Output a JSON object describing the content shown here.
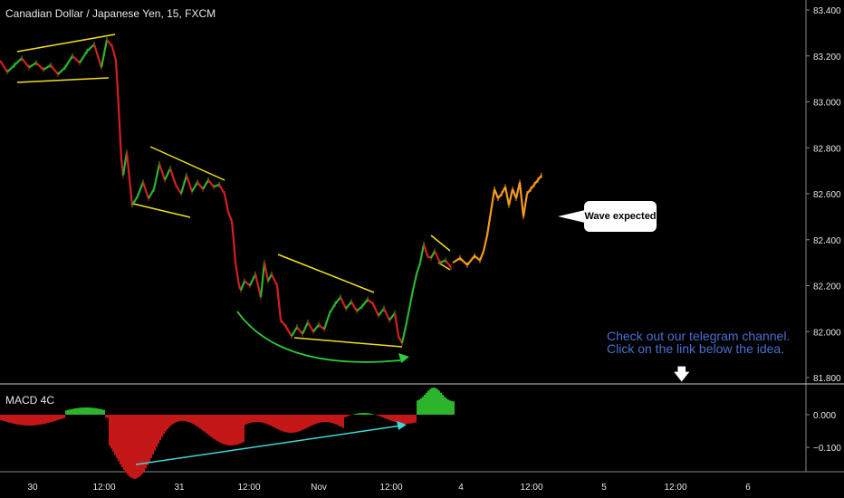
{
  "chart": {
    "title": "Canadian Dollar / Japanese Yen, 15, FXCM",
    "callout_text": "Wave expected",
    "telegram_line1": "Check out our telegram channel.",
    "telegram_line2": "Click on the link below the idea.",
    "macd_label": "MACD 4C",
    "down_arrow_icon": "arrow-down-icon"
  },
  "colors": {
    "background": "#000000",
    "candle_up": "#2db42d",
    "candle_down": "#d42020",
    "projection": "#f59a1f",
    "trendline": "#f2e01d",
    "arc": "#2fcc3c",
    "divergence": "#3fd6d6",
    "macd_pos": "#2db42d",
    "macd_neg": "#c41818",
    "link": "#4a6fd1"
  },
  "chart_data": {
    "type": "line",
    "price_axis_ticks": [
      "83.400",
      "83.200",
      "83.000",
      "82.800",
      "82.600",
      "82.400",
      "82.200",
      "82.000",
      "81.800"
    ],
    "price_ylim": [
      81.78,
      83.42
    ],
    "macd_axis_ticks": [
      "0.000",
      "−0.100"
    ],
    "time_axis_ticks": [
      "30",
      "12:00",
      "31",
      "12:00",
      "Nov",
      "12:00",
      "4",
      "12:00",
      "5",
      "12:00",
      "6"
    ],
    "series": [
      {
        "x": [
          0,
          8,
          16,
          24,
          32,
          40,
          48,
          56,
          64,
          72,
          80,
          88,
          96,
          104,
          112,
          118,
          124,
          128,
          130,
          132,
          134,
          136,
          140,
          146,
          152,
          158,
          164,
          170,
          176,
          182,
          188,
          194,
          200,
          206,
          212,
          218,
          224,
          230,
          236,
          242,
          248,
          252,
          256,
          258,
          260,
          262,
          264,
          266,
          270,
          276,
          282,
          288,
          292,
          296,
          300,
          306,
          310,
          316,
          322,
          328,
          334,
          340,
          346,
          352,
          358,
          364,
          370,
          376,
          382,
          388,
          394,
          400,
          406,
          412,
          418,
          424,
          430,
          436,
          440,
          444,
          448,
          452,
          456,
          460,
          464,
          468,
          472,
          476,
          480,
          486,
          492,
          498
        ],
        "values": [
          83.18,
          83.13,
          83.16,
          83.19,
          83.15,
          83.17,
          83.14,
          83.16,
          83.12,
          83.15,
          83.2,
          83.17,
          83.22,
          83.25,
          83.15,
          83.27,
          83.24,
          83.18,
          83.05,
          82.9,
          82.75,
          82.68,
          82.78,
          82.55,
          82.59,
          82.65,
          82.58,
          82.62,
          82.73,
          82.66,
          82.71,
          82.64,
          82.6,
          82.68,
          82.61,
          82.65,
          82.62,
          82.66,
          82.63,
          82.64,
          82.6,
          82.52,
          82.48,
          82.4,
          82.3,
          82.25,
          82.2,
          82.18,
          82.22,
          82.2,
          82.25,
          82.15,
          82.3,
          82.22,
          82.25,
          82.2,
          82.05,
          82.02,
          81.98,
          82.02,
          81.99,
          82.04,
          82.0,
          82.03,
          82.01,
          82.08,
          82.12,
          82.15,
          82.1,
          82.13,
          82.09,
          82.11,
          82.14,
          82.12,
          82.07,
          82.1,
          82.05,
          82.08,
          81.98,
          81.95,
          82.02,
          82.1,
          82.18,
          82.25,
          82.3,
          82.38,
          82.33,
          82.32,
          82.35,
          82.3,
          82.31,
          82.28
        ]
      },
      {
        "name": "",
        "x": [
          500,
          508,
          516,
          524,
          530,
          534,
          538,
          542,
          546,
          550,
          554,
          558,
          562,
          566,
          570,
          574,
          578,
          582,
          586,
          590,
          594,
          598
        ],
        "values": [
          82.3,
          82.32,
          82.29,
          82.33,
          82.31,
          82.35,
          82.42,
          82.52,
          82.62,
          82.58,
          82.6,
          82.63,
          82.55,
          82.62,
          82.58,
          82.65,
          82.5,
          82.6,
          82.62,
          82.64,
          82.66,
          82.68
        ]
      }
    ]
  }
}
